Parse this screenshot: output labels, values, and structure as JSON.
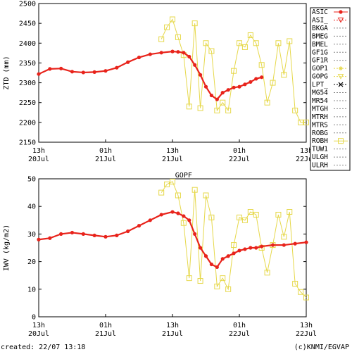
{
  "chart_data": [
    {
      "type": "line",
      "ylabel": "ZTD (mm)",
      "ylim": [
        2150,
        2500
      ],
      "yticks": [
        2150,
        2200,
        2250,
        2300,
        2350,
        2400,
        2450,
        2500
      ],
      "xticks": [
        {
          "t": 0,
          "line1": "13h",
          "line2": "20Jul"
        },
        {
          "t": 12,
          "line1": "01h",
          "line2": "21Jul"
        },
        {
          "t": 24,
          "line1": "13h",
          "line2": "21Jul"
        },
        {
          "t": 36,
          "line1": "01h",
          "line2": "22Jul"
        },
        {
          "t": 48,
          "line1": "13h",
          "line2": "22Jul"
        }
      ],
      "x_hours_since": "20Jul 13h",
      "grid": false,
      "legend": "right",
      "series": [
        {
          "name": "ASIC",
          "color": "#e8231b",
          "marker": "dot",
          "x": [
            0,
            2,
            4,
            6,
            8,
            10,
            12,
            14,
            16,
            18,
            20,
            22,
            24,
            25,
            26,
            27,
            28,
            29,
            30,
            31,
            32,
            33,
            34,
            35,
            36,
            37,
            38,
            39,
            40
          ],
          "y": [
            2322,
            2335,
            2336,
            2328,
            2326,
            2327,
            2330,
            2338,
            2352,
            2364,
            2372,
            2376,
            2379,
            2378,
            2376,
            2366,
            2345,
            2320,
            2290,
            2268,
            2258,
            2275,
            2282,
            2288,
            2290,
            2296,
            2302,
            2310,
            2314
          ]
        },
        {
          "name": "GOPF",
          "color": "#e6d84a",
          "marker": "square",
          "x": [
            22,
            23,
            24,
            25,
            26,
            27,
            28,
            29,
            30,
            31,
            32,
            33,
            34,
            35,
            36,
            37,
            38,
            39,
            40,
            41,
            42,
            43,
            44,
            45,
            46,
            47,
            48
          ],
          "y": [
            2410,
            2440,
            2460,
            2415,
            2370,
            2240,
            2450,
            2236,
            2400,
            2380,
            2230,
            2250,
            2230,
            2330,
            2400,
            2390,
            2420,
            2400,
            2345,
            2250,
            2300,
            2400,
            2320,
            2405,
            2230,
            2200,
            2200
          ]
        }
      ]
    },
    {
      "type": "line",
      "title": "GOPF",
      "ylabel": "IWV (kg/m2)",
      "ylim": [
        0,
        50
      ],
      "yticks": [
        0,
        10,
        20,
        30,
        40,
        50
      ],
      "xticks": [
        {
          "t": 0,
          "line1": "13h",
          "line2": "20Jul"
        },
        {
          "t": 12,
          "line1": "01h",
          "line2": "21Jul"
        },
        {
          "t": 24,
          "line1": "13h",
          "line2": "21Jul"
        },
        {
          "t": 36,
          "line1": "01h",
          "line2": "22Jul"
        },
        {
          "t": 48,
          "line1": "13h",
          "line2": "22Jul"
        }
      ],
      "x_hours_since": "20Jul 13h",
      "grid": false,
      "series": [
        {
          "name": "ASIC",
          "color": "#e8231b",
          "marker": "dot",
          "x": [
            0,
            2,
            4,
            6,
            8,
            10,
            12,
            14,
            16,
            18,
            20,
            22,
            24,
            25,
            26,
            27,
            28,
            29,
            30,
            31,
            32,
            33,
            34,
            35,
            36,
            37,
            38,
            39,
            40,
            42,
            44,
            46,
            48
          ],
          "y": [
            28,
            28.5,
            30,
            30.5,
            30,
            29.5,
            29,
            29.5,
            31,
            33,
            35,
            37,
            38,
            37.5,
            36.5,
            35,
            30,
            25,
            22,
            19,
            18,
            21,
            22,
            23,
            24,
            24.5,
            25,
            25,
            25.5,
            26,
            26,
            26.5,
            27
          ]
        },
        {
          "name": "GOPF",
          "color": "#e6d84a",
          "marker": "square",
          "x": [
            22,
            23,
            24,
            25,
            26,
            27,
            28,
            29,
            30,
            31,
            32,
            33,
            34,
            35,
            36,
            37,
            38,
            39,
            40,
            41,
            42,
            43,
            44,
            45,
            46,
            47,
            48
          ],
          "y": [
            45,
            48,
            49,
            44,
            34,
            14,
            46,
            13,
            44,
            36,
            11,
            14,
            10,
            26,
            36,
            35,
            38,
            37,
            25,
            16,
            26,
            37,
            29,
            38,
            12,
            9,
            7
          ]
        }
      ]
    }
  ],
  "legend": {
    "entries": [
      {
        "name": "ASIC",
        "color": "#e8231b",
        "style": "solid",
        "marker": "dot"
      },
      {
        "name": "ASI_",
        "color": "#e8231b",
        "style": "dotted",
        "marker": "triangle"
      },
      {
        "name": "BKGA",
        "color": "#888888",
        "style": "dotted",
        "marker": "none"
      },
      {
        "name": "BMEG",
        "color": "#888888",
        "style": "dotted",
        "marker": "none"
      },
      {
        "name": "BMEL",
        "color": "#888888",
        "style": "dotted",
        "marker": "none"
      },
      {
        "name": "GF1G",
        "color": "#888888",
        "style": "dotted",
        "marker": "none"
      },
      {
        "name": "GF1R",
        "color": "#888888",
        "style": "dotted",
        "marker": "none"
      },
      {
        "name": "GOP1",
        "color": "#e6d84a",
        "style": "dotted",
        "marker": "star"
      },
      {
        "name": "GOPG",
        "color": "#e6d84a",
        "style": "dotted",
        "marker": "triangle"
      },
      {
        "name": "LPT_",
        "color": "#000000",
        "style": "dotted",
        "marker": "cross"
      },
      {
        "name": "MG54",
        "color": "#888888",
        "style": "dotted",
        "marker": "none"
      },
      {
        "name": "MR54",
        "color": "#888888",
        "style": "dotted",
        "marker": "none"
      },
      {
        "name": "MTGH",
        "color": "#888888",
        "style": "dotted",
        "marker": "none"
      },
      {
        "name": "MTRH",
        "color": "#888888",
        "style": "dotted",
        "marker": "none"
      },
      {
        "name": "MTRS",
        "color": "#888888",
        "style": "dotted",
        "marker": "none"
      },
      {
        "name": "ROBG",
        "color": "#888888",
        "style": "dotted",
        "marker": "none"
      },
      {
        "name": "ROBH",
        "color": "#e6d84a",
        "style": "solid",
        "marker": "square"
      },
      {
        "name": "TUW1",
        "color": "#888888",
        "style": "dotted",
        "marker": "none"
      },
      {
        "name": "ULGH",
        "color": "#888888",
        "style": "dotted",
        "marker": "none"
      },
      {
        "name": "ULRH",
        "color": "#888888",
        "style": "dotted",
        "marker": "none"
      }
    ]
  },
  "footer": {
    "created": "created: 22/07 13:18",
    "credit": "(c)KNMI/EGVAP"
  }
}
